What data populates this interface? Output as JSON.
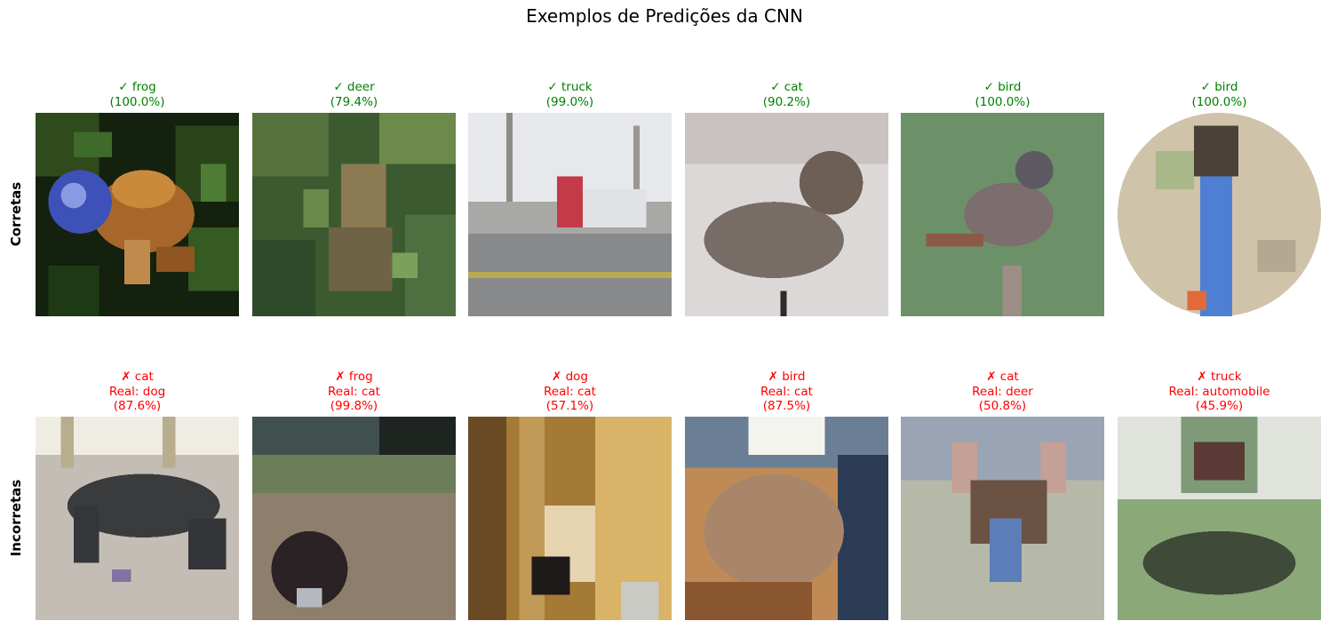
{
  "title": "Exemplos de Predições da CNN",
  "colors": {
    "correct": "#008000",
    "incorrect": "#ff0000"
  },
  "rows": [
    {
      "label": "Corretas",
      "items": [
        {
          "symbol": "✓",
          "pred": "frog",
          "conf": "(100.0%)",
          "caption": "✓ frog\n(100.0%)",
          "subject": "frog"
        },
        {
          "symbol": "✓",
          "pred": "deer",
          "conf": "(79.4%)",
          "caption": "✓ deer\n(79.4%)",
          "subject": "deer"
        },
        {
          "symbol": "✓",
          "pred": "truck",
          "conf": "(99.0%)",
          "caption": "✓ truck\n(99.0%)",
          "subject": "truck"
        },
        {
          "symbol": "✓",
          "pred": "cat",
          "conf": "(90.2%)",
          "caption": "✓ cat\n(90.2%)",
          "subject": "cat"
        },
        {
          "symbol": "✓",
          "pred": "bird",
          "conf": "(100.0%)",
          "caption": "✓ bird\n(100.0%)",
          "subject": "bird"
        },
        {
          "symbol": "✓",
          "pred": "bird",
          "conf": "(100.0%)",
          "caption": "✓ bird\n(100.0%)",
          "subject": "bird"
        }
      ]
    },
    {
      "label": "Incorretas",
      "items": [
        {
          "symbol": "✗",
          "pred": "cat",
          "real": "Real: dog",
          "conf": "(87.6%)",
          "caption": "✗ cat\nReal: dog\n(87.6%)",
          "subject": "dog"
        },
        {
          "symbol": "✗",
          "pred": "frog",
          "real": "Real: cat",
          "conf": "(99.8%)",
          "caption": "✗ frog\nReal: cat\n(99.8%)",
          "subject": "cat"
        },
        {
          "symbol": "✗",
          "pred": "dog",
          "real": "Real: cat",
          "conf": "(57.1%)",
          "caption": "✗ dog\nReal: cat\n(57.1%)",
          "subject": "cat"
        },
        {
          "symbol": "✗",
          "pred": "bird",
          "real": "Real: cat",
          "conf": "(87.5%)",
          "caption": "✗ bird\nReal: cat\n(87.5%)",
          "subject": "cat"
        },
        {
          "symbol": "✗",
          "pred": "cat",
          "real": "Real: deer",
          "conf": "(50.8%)",
          "caption": "✗ cat\nReal: deer\n(50.8%)",
          "subject": "deer"
        },
        {
          "symbol": "✗",
          "pred": "truck",
          "real": "Real: automobile",
          "conf": "(45.9%)",
          "caption": "✗ truck\nReal: automobile\n(45.9%)",
          "subject": "automobile"
        }
      ]
    }
  ]
}
